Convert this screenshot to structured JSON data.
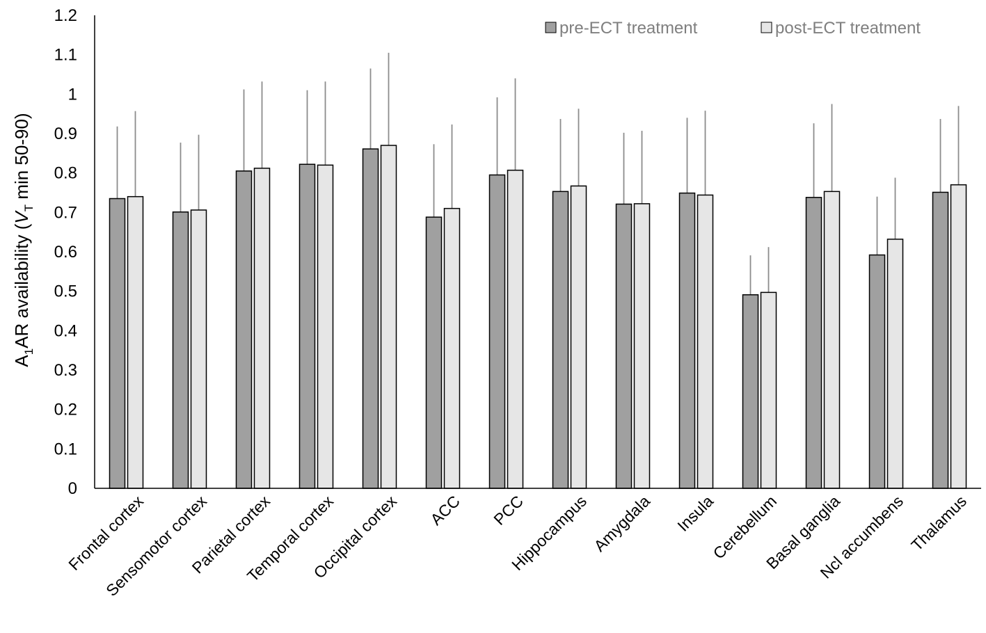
{
  "chart_data": {
    "type": "bar",
    "title": "",
    "xlabel": "",
    "ylabel": {
      "prefix": "A",
      "prefix_sub": "1",
      "main": "AR availability (",
      "var": "V",
      "var_sub": "T",
      "suffix": " min 50-90)"
    },
    "ylim": [
      0,
      1.2
    ],
    "yticks": [
      "0",
      "0.1",
      "0.2",
      "0.3",
      "0.4",
      "0.5",
      "0.6",
      "0.7",
      "0.8",
      "0.9",
      "1",
      "1.1",
      "1.2"
    ],
    "categories": [
      "Frontal cortex",
      "Sensomotor cortex",
      "Parietal cortex",
      "Temporal cortex",
      "Occipital cortex",
      "ACC",
      "PCC",
      "Hippocampus",
      "Amygdala",
      "Insula",
      "Cerebellum",
      "Basal ganglia",
      "Ncl accumbens",
      "Thalamus"
    ],
    "series": [
      {
        "name": "pre-ECT treatment",
        "color": "#a0a0a0",
        "values": [
          0.735,
          0.701,
          0.805,
          0.822,
          0.861,
          0.688,
          0.795,
          0.753,
          0.721,
          0.749,
          0.491,
          0.738,
          0.592,
          0.751
        ],
        "error_upper": [
          0.918,
          0.877,
          1.012,
          1.01,
          1.065,
          0.873,
          0.992,
          0.937,
          0.902,
          0.94,
          0.591,
          0.926,
          0.74,
          0.937
        ]
      },
      {
        "name": "post-ECT treatment",
        "color": "#e6e6e6",
        "values": [
          0.74,
          0.706,
          0.812,
          0.82,
          0.87,
          0.71,
          0.807,
          0.767,
          0.722,
          0.744,
          0.497,
          0.753,
          0.632,
          0.77
        ],
        "error_upper": [
          0.957,
          0.897,
          1.032,
          1.032,
          1.105,
          0.923,
          1.04,
          0.963,
          0.907,
          0.958,
          0.612,
          0.975,
          0.788,
          0.97
        ]
      }
    ],
    "legend": "top-right",
    "grid": false
  }
}
